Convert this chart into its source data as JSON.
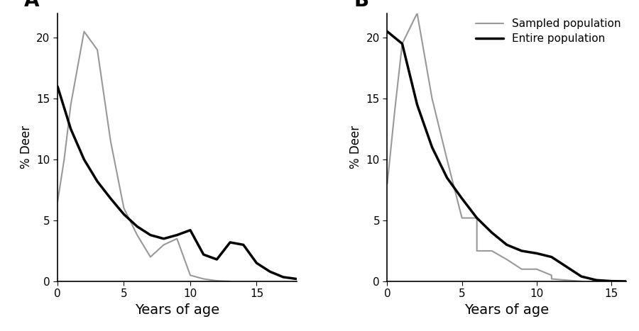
{
  "panel_A": {
    "label": "A",
    "xlabel": "Years of age",
    "ylabel": "% Deer",
    "xlim": [
      0,
      18
    ],
    "ylim": [
      0,
      22
    ],
    "yticks": [
      0,
      5,
      10,
      15,
      20
    ],
    "xticks": [
      0,
      5,
      10,
      15
    ],
    "sampled": {
      "x": [
        0,
        0.5,
        1,
        2,
        3,
        4,
        5,
        6,
        7,
        8,
        9,
        10,
        11,
        12,
        13
      ],
      "y": [
        6.5,
        10.0,
        14.5,
        20.5,
        19.0,
        11.5,
        6.0,
        3.8,
        2.0,
        3.0,
        3.5,
        0.5,
        0.2,
        0.05,
        0.0
      ]
    },
    "entire": {
      "x": [
        0,
        1,
        2,
        3,
        4,
        5,
        6,
        7,
        8,
        9,
        10,
        11,
        12,
        13,
        14,
        15,
        16,
        17,
        18
      ],
      "y": [
        16.0,
        12.5,
        10.0,
        8.2,
        6.8,
        5.5,
        4.5,
        3.8,
        3.5,
        3.8,
        4.2,
        2.2,
        1.8,
        3.2,
        3.0,
        1.5,
        0.8,
        0.35,
        0.2
      ]
    }
  },
  "panel_B": {
    "label": "B",
    "xlabel": "Years of age",
    "ylabel": "% Deer",
    "xlim": [
      0,
      16
    ],
    "ylim": [
      0,
      22
    ],
    "yticks": [
      0,
      5,
      10,
      15,
      20
    ],
    "xticks": [
      0,
      5,
      10,
      15
    ],
    "sampled": {
      "x": [
        0,
        0.5,
        1,
        2,
        3,
        4,
        5,
        6,
        6,
        7,
        8,
        9,
        10,
        11,
        11,
        12,
        13
      ],
      "y": [
        8.0,
        14.0,
        19.5,
        22.0,
        15.0,
        10.0,
        5.2,
        5.2,
        2.5,
        2.5,
        1.8,
        1.0,
        1.0,
        0.5,
        0.2,
        0.1,
        0.0
      ]
    },
    "entire": {
      "x": [
        0,
        1,
        2,
        3,
        4,
        5,
        6,
        7,
        8,
        9,
        10,
        11,
        12,
        13,
        14,
        15,
        16
      ],
      "y": [
        20.5,
        19.5,
        14.5,
        11.0,
        8.5,
        6.8,
        5.2,
        4.0,
        3.0,
        2.5,
        2.3,
        2.0,
        1.2,
        0.4,
        0.1,
        0.02,
        0.0
      ]
    },
    "legend": {
      "sampled_label": "Sampled population",
      "entire_label": "Entire population"
    }
  },
  "sampled_color": "#999999",
  "entire_color": "#000000",
  "sampled_lw": 1.5,
  "entire_lw": 2.5,
  "label_fontsize": 20,
  "axis_fontsize": 13,
  "tick_fontsize": 11,
  "legend_fontsize": 11
}
